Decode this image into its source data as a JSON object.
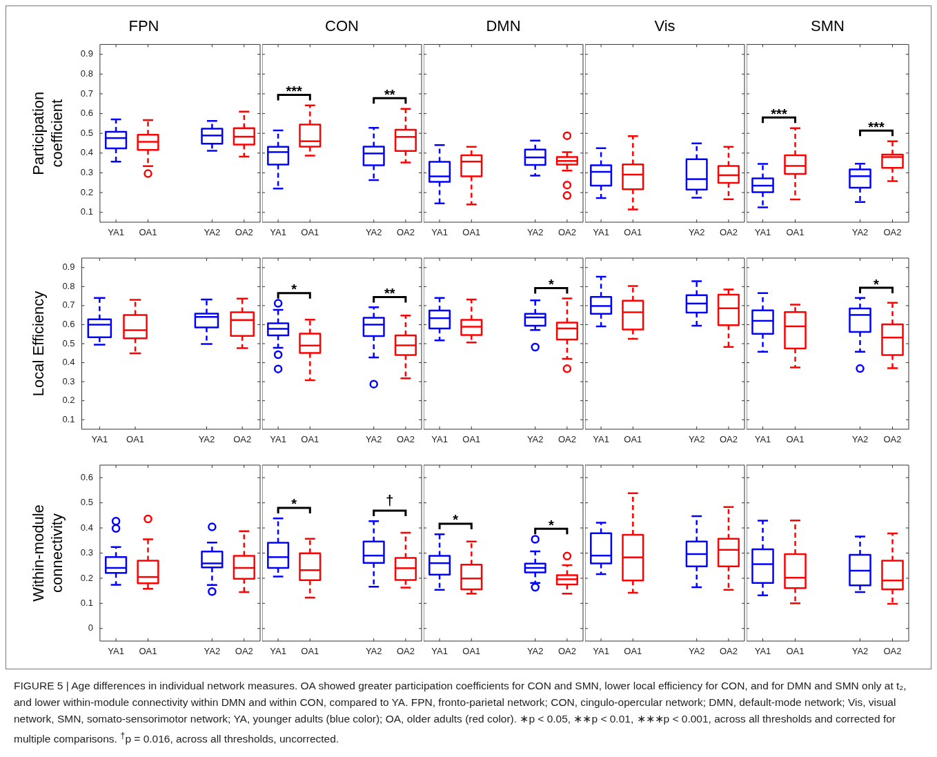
{
  "chart_data": [
    {
      "type": "box",
      "title": "FPN",
      "ylabel": "Participation coefficient",
      "categories": [
        "YA1",
        "OA1",
        null,
        "YA2",
        "OA2"
      ],
      "colors": [
        "#0000ff",
        "#ff0000",
        null,
        "#0000ff",
        "#ff0000"
      ],
      "ylim": [
        0.05,
        0.95
      ],
      "yticks": [
        0.1,
        0.2,
        0.3,
        0.4,
        0.5,
        0.6,
        0.7,
        0.8,
        0.9
      ],
      "boxes": [
        {
          "low": 0.357,
          "q1": 0.424,
          "median": 0.476,
          "q3": 0.508,
          "high": 0.571
        },
        {
          "low": 0.334,
          "q1": 0.416,
          "median": 0.457,
          "q3": 0.493,
          "high": 0.567,
          "outliers": [
            0.296
          ]
        },
        null,
        {
          "low": 0.412,
          "q1": 0.447,
          "median": 0.489,
          "q3": 0.523,
          "high": 0.563
        },
        {
          "low": 0.382,
          "q1": 0.443,
          "median": 0.483,
          "q3": 0.526,
          "high": 0.61
        }
      ]
    },
    {
      "type": "box",
      "title": "CON",
      "tick_labels": "x",
      "categories": [
        "YA1",
        "OA1",
        null,
        "YA2",
        "OA2"
      ],
      "colors": [
        "#0000ff",
        "#ff0000",
        null,
        "#0000ff",
        "#ff0000"
      ],
      "ylim": [
        0.05,
        0.95
      ],
      "yticks": [
        0.1,
        0.2,
        0.3,
        0.4,
        0.5,
        0.6,
        0.7,
        0.8,
        0.9
      ],
      "boxes": [
        {
          "low": 0.22,
          "q1": 0.342,
          "median": 0.405,
          "q3": 0.432,
          "high": 0.515
        },
        {
          "low": 0.387,
          "q1": 0.433,
          "median": 0.46,
          "q3": 0.544,
          "high": 0.641
        },
        null,
        {
          "low": 0.263,
          "q1": 0.338,
          "median": 0.398,
          "q3": 0.433,
          "high": 0.528
        },
        {
          "low": 0.352,
          "q1": 0.411,
          "median": 0.482,
          "q3": 0.518,
          "high": 0.624
        }
      ],
      "annotations": [
        "***",
        "**"
      ]
    },
    {
      "type": "box",
      "title": "DMN",
      "tick_labels": "x",
      "categories": [
        "YA1",
        "OA1",
        null,
        "YA2",
        "OA2"
      ],
      "colors": [
        "#0000ff",
        "#ff0000",
        null,
        "#0000ff",
        "#ff0000"
      ],
      "ylim": [
        0.05,
        0.95
      ],
      "yticks": [
        0.1,
        0.2,
        0.3,
        0.4,
        0.5,
        0.6,
        0.7,
        0.8,
        0.9
      ],
      "boxes": [
        {
          "low": 0.145,
          "q1": 0.254,
          "median": 0.282,
          "q3": 0.356,
          "high": 0.44
        },
        {
          "low": 0.14,
          "q1": 0.282,
          "median": 0.357,
          "q3": 0.389,
          "high": 0.432
        },
        null,
        {
          "low": 0.286,
          "q1": 0.34,
          "median": 0.378,
          "q3": 0.418,
          "high": 0.463
        },
        {
          "low": 0.311,
          "q1": 0.342,
          "median": 0.36,
          "q3": 0.38,
          "high": 0.405,
          "outliers": [
            0.488,
            0.238,
            0.185
          ]
        }
      ]
    },
    {
      "type": "box",
      "title": "Vis",
      "tick_labels": "x",
      "categories": [
        "YA1",
        "OA1",
        null,
        "YA2",
        "OA2"
      ],
      "colors": [
        "#0000ff",
        "#ff0000",
        null,
        "#0000ff",
        "#ff0000"
      ],
      "ylim": [
        0.05,
        0.95
      ],
      "yticks": [
        0.1,
        0.2,
        0.3,
        0.4,
        0.5,
        0.6,
        0.7,
        0.8,
        0.9
      ],
      "boxes": [
        {
          "low": 0.172,
          "q1": 0.235,
          "median": 0.305,
          "q3": 0.338,
          "high": 0.425
        },
        {
          "low": 0.115,
          "q1": 0.217,
          "median": 0.291,
          "q3": 0.343,
          "high": 0.486
        },
        null,
        {
          "low": 0.174,
          "q1": 0.215,
          "median": 0.268,
          "q3": 0.369,
          "high": 0.449
        },
        {
          "low": 0.166,
          "q1": 0.249,
          "median": 0.288,
          "q3": 0.335,
          "high": 0.432
        }
      ]
    },
    {
      "type": "box",
      "title": "SMN",
      "tick_labels": "x",
      "categories": [
        "YA1",
        "OA1",
        null,
        "YA2",
        "OA2"
      ],
      "colors": [
        "#0000ff",
        "#ff0000",
        null,
        "#0000ff",
        "#ff0000"
      ],
      "ylim": [
        0.05,
        0.95
      ],
      "yticks": [
        0.1,
        0.2,
        0.3,
        0.4,
        0.5,
        0.6,
        0.7,
        0.8,
        0.9
      ],
      "boxes": [
        {
          "low": 0.125,
          "q1": 0.202,
          "median": 0.235,
          "q3": 0.272,
          "high": 0.345
        },
        {
          "low": 0.165,
          "q1": 0.295,
          "median": 0.335,
          "q3": 0.389,
          "high": 0.526
        },
        null,
        {
          "low": 0.152,
          "q1": 0.225,
          "median": 0.283,
          "q3": 0.317,
          "high": 0.346
        },
        {
          "low": 0.258,
          "q1": 0.325,
          "median": 0.38,
          "q3": 0.392,
          "high": 0.46
        }
      ],
      "annotations": [
        "***",
        "***"
      ]
    },
    {
      "type": "box",
      "ylabel": "Local Efficiency",
      "categories": [
        "YA1",
        "OA1",
        null,
        "YA2",
        "OA2"
      ],
      "colors": [
        "#0000ff",
        "#ff0000",
        null,
        "#0000ff",
        "#ff0000"
      ],
      "ylim": [
        0.05,
        0.95
      ],
      "yticks": [
        0.1,
        0.2,
        0.3,
        0.4,
        0.5,
        0.6,
        0.7,
        0.8,
        0.9
      ],
      "boxes": [
        {
          "low": 0.495,
          "q1": 0.534,
          "median": 0.6,
          "q3": 0.628,
          "high": 0.74
        },
        {
          "low": 0.449,
          "q1": 0.528,
          "median": 0.571,
          "q3": 0.651,
          "high": 0.73
        },
        null,
        {
          "low": 0.498,
          "q1": 0.585,
          "median": 0.641,
          "q3": 0.658,
          "high": 0.732
        },
        {
          "low": 0.476,
          "q1": 0.541,
          "median": 0.624,
          "q3": 0.665,
          "high": 0.737
        }
      ]
    },
    {
      "type": "box",
      "tick_labels": "x",
      "categories": [
        "YA1",
        "OA1",
        null,
        "YA2",
        "OA2"
      ],
      "colors": [
        "#0000ff",
        "#ff0000",
        null,
        "#0000ff",
        "#ff0000"
      ],
      "ylim": [
        0.05,
        0.95
      ],
      "yticks": [
        0.1,
        0.2,
        0.3,
        0.4,
        0.5,
        0.6,
        0.7,
        0.8,
        0.9
      ],
      "boxes": [
        {
          "low": 0.478,
          "q1": 0.544,
          "median": 0.578,
          "q3": 0.607,
          "high": 0.678,
          "outliers": [
            0.712,
            0.442,
            0.367
          ]
        },
        {
          "low": 0.308,
          "q1": 0.451,
          "median": 0.49,
          "q3": 0.553,
          "high": 0.626
        },
        null,
        {
          "low": 0.427,
          "q1": 0.54,
          "median": 0.6,
          "q3": 0.636,
          "high": 0.691,
          "outliers": [
            0.287
          ]
        },
        {
          "low": 0.318,
          "q1": 0.44,
          "median": 0.491,
          "q3": 0.544,
          "high": 0.648
        }
      ],
      "annotations": [
        "*",
        "**"
      ]
    },
    {
      "type": "box",
      "tick_labels": "x",
      "categories": [
        "YA1",
        "OA1",
        null,
        "YA2",
        "OA2"
      ],
      "colors": [
        "#0000ff",
        "#ff0000",
        null,
        "#0000ff",
        "#ff0000"
      ],
      "ylim": [
        0.05,
        0.95
      ],
      "yticks": [
        0.1,
        0.2,
        0.3,
        0.4,
        0.5,
        0.6,
        0.7,
        0.8,
        0.9
      ],
      "boxes": [
        {
          "low": 0.517,
          "q1": 0.58,
          "median": 0.634,
          "q3": 0.674,
          "high": 0.74
        },
        {
          "low": 0.506,
          "q1": 0.545,
          "median": 0.589,
          "q3": 0.625,
          "high": 0.732
        },
        null,
        {
          "low": 0.572,
          "q1": 0.594,
          "median": 0.638,
          "q3": 0.657,
          "high": 0.728,
          "outliers": [
            0.482
          ]
        },
        {
          "low": 0.42,
          "q1": 0.522,
          "median": 0.58,
          "q3": 0.611,
          "high": 0.738,
          "outliers": [
            0.368
          ]
        }
      ],
      "annotations": [
        "*"
      ]
    },
    {
      "type": "box",
      "tick_labels": "x",
      "categories": [
        "YA1",
        "OA1",
        null,
        "YA2",
        "OA2"
      ],
      "colors": [
        "#0000ff",
        "#ff0000",
        null,
        "#0000ff",
        "#ff0000"
      ],
      "ylim": [
        0.05,
        0.95
      ],
      "yticks": [
        0.1,
        0.2,
        0.3,
        0.4,
        0.5,
        0.6,
        0.7,
        0.8,
        0.9
      ],
      "boxes": [
        {
          "low": 0.591,
          "q1": 0.657,
          "median": 0.698,
          "q3": 0.746,
          "high": 0.852
        },
        {
          "low": 0.525,
          "q1": 0.574,
          "median": 0.665,
          "q3": 0.726,
          "high": 0.803
        },
        null,
        {
          "low": 0.594,
          "q1": 0.663,
          "median": 0.711,
          "q3": 0.755,
          "high": 0.828
        },
        {
          "low": 0.483,
          "q1": 0.597,
          "median": 0.686,
          "q3": 0.758,
          "high": 0.785
        }
      ]
    },
    {
      "type": "box",
      "tick_labels": "x",
      "categories": [
        "YA1",
        "OA1",
        null,
        "YA2",
        "OA2"
      ],
      "colors": [
        "#0000ff",
        "#ff0000",
        null,
        "#0000ff",
        "#ff0000"
      ],
      "ylim": [
        0.05,
        0.95
      ],
      "yticks": [
        0.1,
        0.2,
        0.3,
        0.4,
        0.5,
        0.6,
        0.7,
        0.8,
        0.9
      ],
      "boxes": [
        {
          "low": 0.457,
          "q1": 0.552,
          "median": 0.62,
          "q3": 0.675,
          "high": 0.766
        },
        {
          "low": 0.375,
          "q1": 0.475,
          "median": 0.591,
          "q3": 0.666,
          "high": 0.705
        },
        null,
        {
          "low": 0.457,
          "q1": 0.562,
          "median": 0.651,
          "q3": 0.685,
          "high": 0.74,
          "outliers": [
            0.369
          ]
        },
        {
          "low": 0.371,
          "q1": 0.44,
          "median": 0.532,
          "q3": 0.602,
          "high": 0.715
        }
      ],
      "annotations": [
        "*"
      ]
    },
    {
      "type": "box",
      "ylabel": "Within-module connectivity",
      "categories": [
        "YA1",
        "OA1",
        null,
        "YA2",
        "OA2"
      ],
      "colors": [
        "#0000ff",
        "#ff0000",
        null,
        "#0000ff",
        "#ff0000"
      ],
      "ylim": [
        -0.05,
        0.65
      ],
      "yticks": [
        0,
        0.1,
        0.2,
        0.3,
        0.4,
        0.5,
        0.6
      ],
      "boxes": [
        {
          "low": 0.174,
          "q1": 0.221,
          "median": 0.241,
          "q3": 0.284,
          "high": 0.324,
          "outliers": [
            0.427,
            0.398
          ]
        },
        {
          "low": 0.158,
          "q1": 0.18,
          "median": 0.205,
          "q3": 0.27,
          "high": 0.355,
          "outliers": [
            0.436
          ]
        },
        null,
        {
          "low": 0.173,
          "q1": 0.243,
          "median": 0.259,
          "q3": 0.306,
          "high": 0.342,
          "outliers": [
            0.404,
            0.147
          ]
        },
        {
          "low": 0.145,
          "q1": 0.198,
          "median": 0.241,
          "q3": 0.289,
          "high": 0.387
        }
      ]
    },
    {
      "type": "box",
      "tick_labels": "x",
      "categories": [
        "YA1",
        "OA1",
        null,
        "YA2",
        "OA2"
      ],
      "colors": [
        "#0000ff",
        "#ff0000",
        null,
        "#0000ff",
        "#ff0000"
      ],
      "ylim": [
        -0.05,
        0.65
      ],
      "yticks": [
        0,
        0.1,
        0.2,
        0.3,
        0.4,
        0.5,
        0.6
      ],
      "boxes": [
        {
          "low": 0.207,
          "q1": 0.241,
          "median": 0.284,
          "q3": 0.341,
          "high": 0.438
        },
        {
          "low": 0.123,
          "q1": 0.192,
          "median": 0.232,
          "q3": 0.299,
          "high": 0.357
        },
        null,
        {
          "low": 0.166,
          "q1": 0.261,
          "median": 0.29,
          "q3": 0.346,
          "high": 0.427
        },
        {
          "low": 0.163,
          "q1": 0.193,
          "median": 0.24,
          "q3": 0.281,
          "high": 0.381
        }
      ],
      "annotations": [
        "*",
        "†"
      ]
    },
    {
      "type": "box",
      "tick_labels": "x",
      "categories": [
        "YA1",
        "OA1",
        null,
        "YA2",
        "OA2"
      ],
      "colors": [
        "#0000ff",
        "#ff0000",
        null,
        "#0000ff",
        "#ff0000"
      ],
      "ylim": [
        -0.05,
        0.65
      ],
      "yticks": [
        0,
        0.1,
        0.2,
        0.3,
        0.4,
        0.5,
        0.6
      ],
      "boxes": [
        {
          "low": 0.154,
          "q1": 0.214,
          "median": 0.26,
          "q3": 0.289,
          "high": 0.375
        },
        {
          "low": 0.139,
          "q1": 0.156,
          "median": 0.199,
          "q3": 0.254,
          "high": 0.346
        },
        null,
        {
          "low": 0.181,
          "q1": 0.223,
          "median": 0.241,
          "q3": 0.258,
          "high": 0.307,
          "outliers": [
            0.355,
            0.164
          ]
        },
        {
          "low": 0.139,
          "q1": 0.175,
          "median": 0.196,
          "q3": 0.212,
          "high": 0.252,
          "outliers": [
            0.288
          ]
        }
      ],
      "annotations": [
        "*",
        "*"
      ]
    },
    {
      "type": "box",
      "tick_labels": "x",
      "categories": [
        "YA1",
        "OA1",
        null,
        "YA2",
        "OA2"
      ],
      "colors": [
        "#0000ff",
        "#ff0000",
        null,
        "#0000ff",
        "#ff0000"
      ],
      "ylim": [
        -0.05,
        0.65
      ],
      "yticks": [
        0,
        0.1,
        0.2,
        0.3,
        0.4,
        0.5,
        0.6
      ],
      "boxes": [
        {
          "low": 0.216,
          "q1": 0.259,
          "median": 0.29,
          "q3": 0.379,
          "high": 0.421
        },
        {
          "low": 0.142,
          "q1": 0.191,
          "median": 0.283,
          "q3": 0.373,
          "high": 0.538
        },
        null,
        {
          "low": 0.164,
          "q1": 0.247,
          "median": 0.296,
          "q3": 0.346,
          "high": 0.447
        },
        {
          "low": 0.154,
          "q1": 0.247,
          "median": 0.313,
          "q3": 0.357,
          "high": 0.483
        }
      ]
    },
    {
      "type": "box",
      "tick_labels": "x",
      "categories": [
        "YA1",
        "OA1",
        null,
        "YA2",
        "OA2"
      ],
      "colors": [
        "#0000ff",
        "#ff0000",
        null,
        "#0000ff",
        "#ff0000"
      ],
      "ylim": [
        -0.05,
        0.65
      ],
      "yticks": [
        0,
        0.1,
        0.2,
        0.3,
        0.4,
        0.5,
        0.6
      ],
      "boxes": [
        {
          "low": 0.132,
          "q1": 0.181,
          "median": 0.256,
          "q3": 0.315,
          "high": 0.429
        },
        {
          "low": 0.1,
          "q1": 0.161,
          "median": 0.202,
          "q3": 0.296,
          "high": 0.43
        },
        null,
        {
          "low": 0.145,
          "q1": 0.172,
          "median": 0.23,
          "q3": 0.293,
          "high": 0.366
        },
        {
          "low": 0.098,
          "q1": 0.156,
          "median": 0.191,
          "q3": 0.27,
          "high": 0.378
        }
      ],
      "annotations": [
        "FIGURE 5 | Age differences in individual network measures. OA showed greater participation coefficients for CON and SMN, lower local efficiency for CON, and for DMN and SMN only at t₂, and lower within-module connectivity within DMN and within CON, compared to YA. FPN, fronto-parietal network; CON, cingulo-opercular network; DMN, default-mode network; Vis, visual network, SMN, somato-sensorimotor network; YA, younger adults (blue color); OA, older adults (red color). ∗p < 0.05, ∗∗p < 0.01, ∗∗∗p < 0.001, across all thresholds and corrected for multiple comparisons. $^{†}$p = 0.016, across all thresholds, uncorrected."
      ]
    }
  ]
}
